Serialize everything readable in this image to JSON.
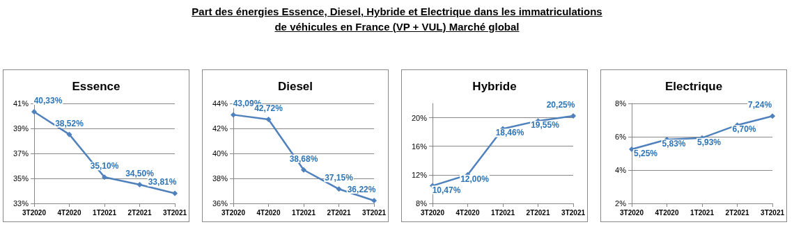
{
  "chart_data": [
    {
      "type": "line",
      "title": "Essence",
      "annotations": [
        "Part des énergies Essence, Diesel, Hybride et Electrique dans les immatriculations de véhicules en France (VP + VUL) Marché global"
      ],
      "categories": [
        "3T2020",
        "4T2020",
        "1T2021",
        "2T2021",
        "3T2021"
      ],
      "series": [
        {
          "color": "#4f81bd",
          "values": [
            40.33,
            38.52,
            35.1,
            34.5,
            33.81
          ],
          "value_labels": [
            "40,33%",
            "38,52%",
            "35,10%",
            "34,50%",
            "33,81%"
          ]
        }
      ],
      "ylim": [
        33,
        41
      ],
      "yticks": [
        {
          "value": 33,
          "label": "33%"
        },
        {
          "value": 35,
          "label": "35%"
        },
        {
          "value": 37,
          "label": "37%"
        },
        {
          "value": 39,
          "label": "39%"
        },
        {
          "value": 41,
          "label": "41%"
        }
      ],
      "grid": "y",
      "marker": "diamond"
    },
    {
      "type": "line",
      "title": "Diesel",
      "categories": [
        "3T2020",
        "4T2020",
        "1T2021",
        "2T2021",
        "3T2021"
      ],
      "series": [
        {
          "color": "#4f81bd",
          "values": [
            43.09,
            42.72,
            38.68,
            37.15,
            36.22
          ],
          "value_labels": [
            "43,09%",
            "42,72%",
            "38,68%",
            "37,15%",
            "36,22%"
          ]
        }
      ],
      "ylim": [
        36,
        44
      ],
      "yticks": [
        {
          "value": 36,
          "label": "36%"
        },
        {
          "value": 38,
          "label": "38%"
        },
        {
          "value": 40,
          "label": "40%"
        },
        {
          "value": 42,
          "label": "42%"
        },
        {
          "value": 44,
          "label": "44%"
        }
      ],
      "grid": "y",
      "marker": "diamond"
    },
    {
      "type": "line",
      "title": "Hybride",
      "categories": [
        "3T2020",
        "4T2020",
        "1T2021",
        "2T2021",
        "3T2021"
      ],
      "series": [
        {
          "color": "#4f81bd",
          "values": [
            10.47,
            12.0,
            18.46,
            19.55,
            20.25
          ],
          "value_labels": [
            "10,47%",
            "12,00%",
            "18,46%",
            "19,55%",
            "20,25%"
          ]
        }
      ],
      "ylim": [
        8,
        22
      ],
      "yticks": [
        {
          "value": 8,
          "label": "8%"
        },
        {
          "value": 12,
          "label": "12%"
        },
        {
          "value": 16,
          "label": "16%"
        },
        {
          "value": 20,
          "label": "20%"
        }
      ],
      "grid": "y",
      "marker": "diamond"
    },
    {
      "type": "line",
      "title": "Electrique",
      "categories": [
        "3T2020",
        "4T2020",
        "1T2021",
        "2T2021",
        "3T2021"
      ],
      "series": [
        {
          "color": "#4f81bd",
          "values": [
            5.25,
            5.83,
            5.93,
            6.7,
            7.24
          ],
          "value_labels": [
            "5,25%",
            "5,83%",
            "5,93%",
            "6,70%",
            "7,24%"
          ]
        }
      ],
      "ylim": [
        2,
        8
      ],
      "yticks": [
        {
          "value": 2,
          "label": "2%"
        },
        {
          "value": 4,
          "label": "4%"
        },
        {
          "value": 6,
          "label": "6%"
        },
        {
          "value": 8,
          "label": "8%"
        }
      ],
      "grid": "y",
      "marker": "diamond"
    }
  ]
}
